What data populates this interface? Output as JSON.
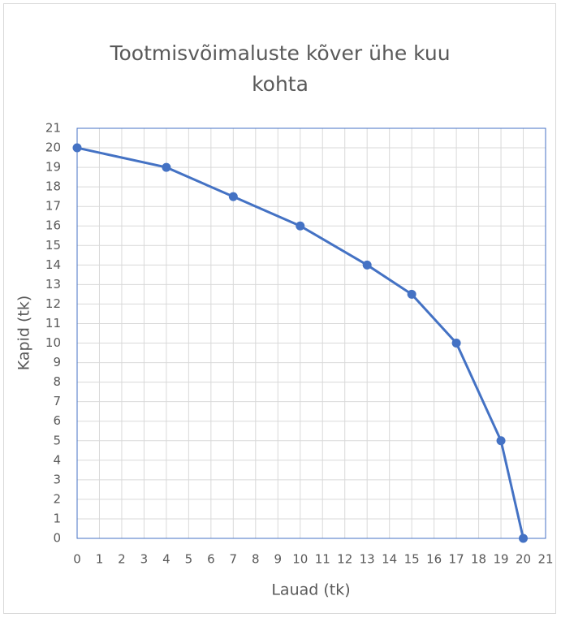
{
  "chart_data": {
    "type": "line",
    "title": "Tootmisvõimaluste kõver ühe kuu kohta",
    "x_label": "Lauad (tk)",
    "y_label": "Kapid (tk)",
    "x": [
      0,
      4,
      7,
      10,
      13,
      15,
      17,
      19,
      20
    ],
    "series": [
      {
        "name": "Kapid",
        "color": "#4472c4",
        "values": [
          20,
          19,
          17.5,
          16,
          14,
          12.5,
          10,
          5,
          0
        ]
      }
    ],
    "xlim": [
      0,
      21
    ],
    "xticks": [
      0,
      1,
      2,
      3,
      4,
      5,
      6,
      7,
      8,
      9,
      10,
      11,
      12,
      13,
      14,
      15,
      16,
      17,
      18,
      19,
      20,
      21
    ],
    "ylim": [
      0,
      21
    ],
    "yticks": [
      0,
      1,
      2,
      3,
      4,
      5,
      6,
      7,
      8,
      9,
      10,
      11,
      12,
      13,
      14,
      15,
      16,
      17,
      18,
      19,
      20,
      21
    ],
    "grid": true
  }
}
